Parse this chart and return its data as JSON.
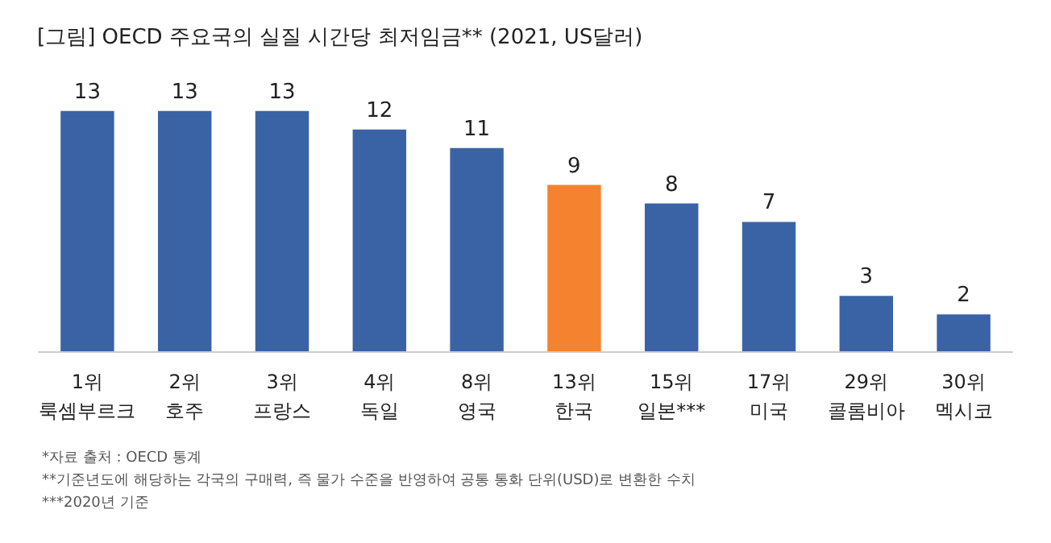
{
  "chart_data": {
    "type": "bar",
    "title": "[그림] OECD 주요국의 실질 시간당 최저임금** (2021, US달러)",
    "categories": [
      "1위\n룩셈부르크",
      "2위\n호주",
      "3위\n프랑스",
      "4위\n독일",
      "8위\n영국",
      "13위\n한국",
      "15위\n일본***",
      "17위\n미국",
      "29위\n콜롬비아",
      "30위\n멕시코"
    ],
    "values": [
      13,
      13,
      13,
      12,
      11,
      9,
      8,
      7,
      3,
      2
    ],
    "colors": [
      "#3a63a5",
      "#3a63a5",
      "#3a63a5",
      "#3a63a5",
      "#3a63a5",
      "#f5822f",
      "#3a63a5",
      "#3a63a5",
      "#3a63a5",
      "#3a63a5"
    ],
    "data_labels": true,
    "annotations": [
      "*자료 출처 : OECD 통계",
      "**기준년도에 해당하는 각국의 구매력, 즉 물가 수준을 반영하여 공통 통화 단위(USD)로 변환한 수치",
      "***2020년 기준"
    ]
  }
}
